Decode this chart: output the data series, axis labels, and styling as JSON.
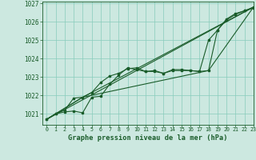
{
  "title": "Graphe pression niveau de la mer (hPa)",
  "background_color": "#cce8e0",
  "plot_bg_color": "#cce8e0",
  "grid_color": "#88ccbb",
  "line_color": "#1a5c2a",
  "marker_color": "#1a5c2a",
  "xlim": [
    -0.5,
    23
  ],
  "ylim": [
    1020.4,
    1027.1
  ],
  "yticks": [
    1021,
    1022,
    1023,
    1024,
    1025,
    1026,
    1027
  ],
  "xticks": [
    0,
    1,
    2,
    3,
    4,
    5,
    6,
    7,
    8,
    9,
    10,
    11,
    12,
    13,
    14,
    15,
    16,
    17,
    18,
    19,
    20,
    21,
    22,
    23
  ],
  "series1": [
    1020.7,
    1021.0,
    1021.1,
    1021.15,
    1021.05,
    1021.9,
    1021.95,
    1022.6,
    1023.1,
    1023.5,
    1023.4,
    1023.3,
    1023.35,
    1023.2,
    1023.35,
    1023.35,
    1023.35,
    1023.3,
    1025.0,
    1025.55,
    1026.1,
    1026.4,
    1026.6,
    1026.75
  ],
  "series2": [
    1020.7,
    1021.0,
    1021.2,
    1021.85,
    1021.9,
    1022.15,
    1022.7,
    1023.05,
    1023.2,
    1023.45,
    1023.5,
    1023.3,
    1023.3,
    1023.2,
    1023.4,
    1023.4,
    1023.35,
    1023.3,
    1023.35,
    1025.55,
    1026.15,
    1026.45,
    1026.6,
    1026.8
  ],
  "trend1_x": [
    0,
    23
  ],
  "trend1_y": [
    1020.7,
    1026.8
  ],
  "trend2_x": [
    0,
    4,
    23
  ],
  "trend2_y": [
    1020.7,
    1021.9,
    1026.8
  ],
  "trend3_x": [
    0,
    4,
    18,
    23
  ],
  "trend3_y": [
    1020.7,
    1021.9,
    1023.35,
    1026.8
  ]
}
